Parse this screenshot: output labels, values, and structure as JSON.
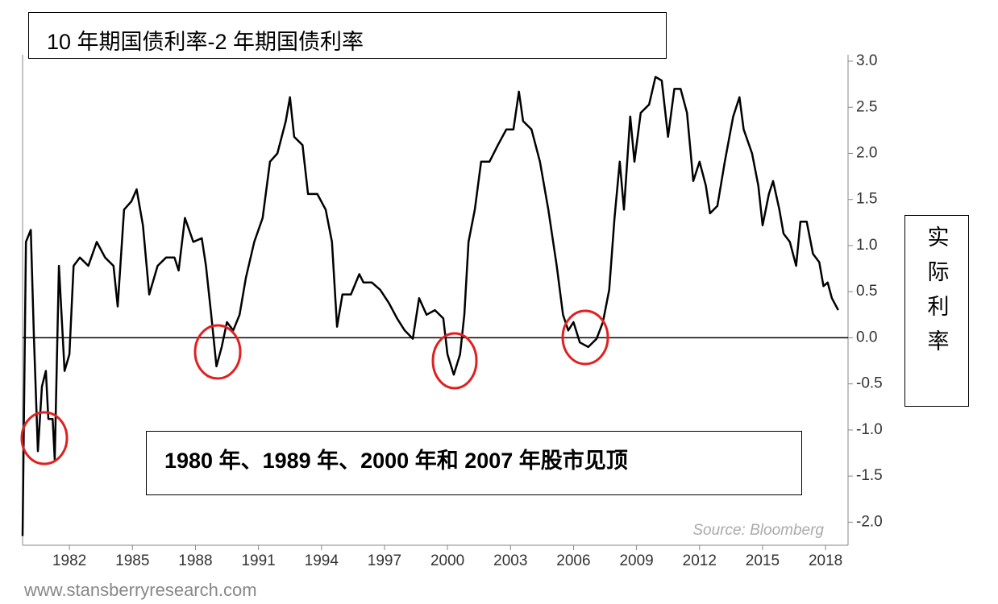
{
  "chart_data": {
    "type": "line",
    "title": "10 年期国债利率-2 年期国债利率",
    "annotation": "1980 年、1989 年、2000 年和 2007 年股市见顶",
    "y_axis_label": "实际利率",
    "source": "Source: Bloomberg",
    "footer": "www.stansberryresearch.com",
    "color": "#000000",
    "x": [
      1979.77,
      1979.93,
      1980.16,
      1980.31,
      1980.5,
      1980.69,
      1980.88,
      1981.0,
      1981.2,
      1981.3,
      1981.5,
      1981.77,
      1982.0,
      1982.2,
      1982.5,
      1982.9,
      1983.3,
      1983.7,
      1984.1,
      1984.3,
      1984.6,
      1984.95,
      1985.2,
      1985.5,
      1985.8,
      1986.2,
      1986.6,
      1987.0,
      1987.2,
      1987.5,
      1987.9,
      1988.3,
      1988.5,
      1988.75,
      1989.0,
      1989.25,
      1989.5,
      1989.8,
      1990.1,
      1990.4,
      1990.8,
      1991.2,
      1991.55,
      1991.9,
      1992.3,
      1992.5,
      1992.7,
      1993.1,
      1993.36,
      1993.8,
      1994.2,
      1994.5,
      1994.74,
      1995.0,
      1995.4,
      1995.8,
      1996.0,
      1996.4,
      1996.8,
      1997.2,
      1997.6,
      1997.96,
      1998.35,
      1998.65,
      1999.0,
      1999.4,
      1999.8,
      2000.0,
      2000.3,
      2000.6,
      2000.8,
      2001.0,
      2001.3,
      2001.6,
      2002.0,
      2002.4,
      2002.8,
      2003.14,
      2003.4,
      2003.6,
      2004.0,
      2004.4,
      2004.8,
      2005.2,
      2005.5,
      2005.75,
      2006.0,
      2006.3,
      2006.7,
      2007.1,
      2007.4,
      2007.7,
      2007.95,
      2008.2,
      2008.4,
      2008.7,
      2008.9,
      2009.2,
      2009.6,
      2009.9,
      2010.2,
      2010.5,
      2010.8,
      2011.1,
      2011.4,
      2011.7,
      2012.0,
      2012.3,
      2012.5,
      2012.85,
      2013.2,
      2013.6,
      2013.9,
      2014.1,
      2014.5,
      2014.8,
      2015.0,
      2015.3,
      2015.5,
      2015.8,
      2016.0,
      2016.3,
      2016.6,
      2016.8,
      2017.1,
      2017.4,
      2017.7,
      2017.9,
      2018.1,
      2018.3,
      2018.6
    ],
    "values": [
      -2.15,
      1.04,
      1.17,
      0.0,
      -1.23,
      -0.53,
      -0.36,
      -0.88,
      -0.88,
      -1.32,
      0.78,
      -0.36,
      -0.18,
      0.78,
      0.87,
      0.78,
      1.04,
      0.87,
      0.78,
      0.34,
      1.39,
      1.48,
      1.61,
      1.22,
      0.47,
      0.78,
      0.87,
      0.87,
      0.73,
      1.3,
      1.04,
      1.08,
      0.78,
      0.25,
      -0.31,
      -0.1,
      0.17,
      0.08,
      0.25,
      0.65,
      1.04,
      1.3,
      1.91,
      2.0,
      2.35,
      2.61,
      2.18,
      2.09,
      1.56,
      1.56,
      1.39,
      1.04,
      0.12,
      0.47,
      0.47,
      0.69,
      0.6,
      0.6,
      0.52,
      0.38,
      0.21,
      0.08,
      -0.01,
      0.43,
      0.25,
      0.3,
      0.21,
      -0.18,
      -0.4,
      -0.18,
      0.25,
      1.04,
      1.39,
      1.91,
      1.91,
      2.09,
      2.26,
      2.26,
      2.67,
      2.35,
      2.26,
      1.91,
      1.39,
      0.78,
      0.25,
      0.08,
      0.17,
      -0.05,
      -0.1,
      -0.01,
      0.17,
      0.52,
      1.3,
      1.91,
      1.39,
      2.4,
      1.91,
      2.44,
      2.53,
      2.83,
      2.79,
      2.18,
      2.7,
      2.7,
      2.44,
      1.7,
      1.91,
      1.65,
      1.35,
      1.43,
      1.91,
      2.4,
      2.61,
      2.26,
      2.0,
      1.65,
      1.22,
      1.56,
      1.7,
      1.39,
      1.13,
      1.04,
      0.78,
      1.26,
      1.26,
      0.91,
      0.82,
      0.56,
      0.6,
      0.43,
      0.3
    ],
    "xlim": [
      1979.77,
      2019.07
    ],
    "xticks": [
      1982,
      1985,
      1988,
      1991,
      1994,
      1997,
      2000,
      2003,
      2006,
      2009,
      2012,
      2015,
      2018
    ],
    "ylim": [
      -2.25,
      3.07
    ],
    "yticks": [
      {
        "value": 3,
        "label": "3.0"
      },
      2.5,
      {
        "value": 2,
        "label": "2.0"
      },
      1.5,
      {
        "value": 1,
        "label": "1.0"
      },
      0.5,
      {
        "value": 0,
        "label": "0.0"
      },
      -0.5,
      {
        "value": -1,
        "label": "-1.0"
      },
      -1.5,
      {
        "value": -2,
        "label": "-2.0"
      }
    ],
    "zero_line": true
  }
}
